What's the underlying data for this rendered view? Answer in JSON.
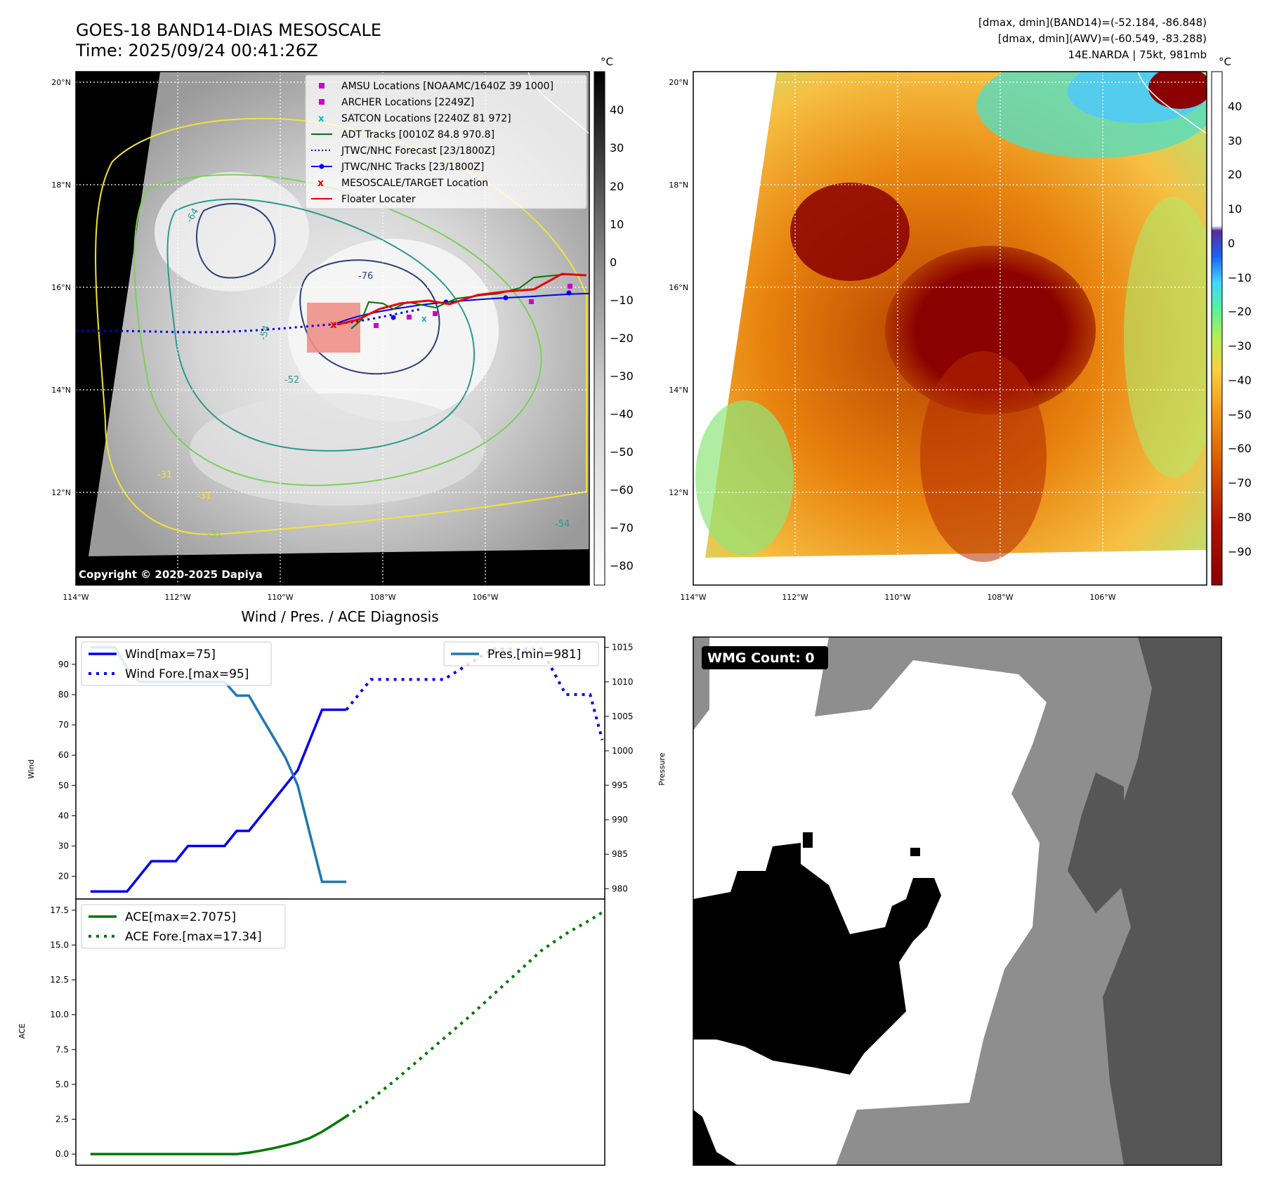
{
  "header": {
    "title": "GOES-18 BAND14-DIAS MESOSCALE",
    "time": "Time: 2025/09/24 00:41:26Z",
    "stats_line1": "[dmax, dmin](BAND14)=(-52.184, -86.848)",
    "stats_line2": "[dmax, dmin](AWV)=(-60.549, -83.288)",
    "storm_line": "14E.NARDA | 75kt, 981mb"
  },
  "map": {
    "lat_labels": [
      "20°N",
      "18°N",
      "16°N",
      "14°N",
      "12°N"
    ],
    "lon_labels": [
      "114°W",
      "112°W",
      "110°W",
      "108°W",
      "106°W"
    ],
    "copyright": "Copyright © 2020-2025 Dapiya",
    "contour_labels": [
      "-64",
      "-76",
      "-54",
      "-52",
      "-31",
      "-31",
      "-31",
      "-54"
    ],
    "colors": {
      "eye_patch": "#f0908a",
      "track_blue": "#0000ee",
      "track_red": "#ee0000",
      "adt_green": "#007700",
      "archer_magenta": "#cc00cc",
      "satcon_cyan": "#00bbbb",
      "contour_yellow": "#f2e23a",
      "contour_green": "#7ccf5a",
      "contour_teal": "#2a9a8e",
      "contour_navy": "#2b3f7a"
    }
  },
  "legend": {
    "items": [
      {
        "label": "AMSU Locations [NOAAMC/1640Z 39 1000]",
        "marker": "square",
        "color": "#cc00cc"
      },
      {
        "label": "ARCHER Locations [2249Z]",
        "marker": "square",
        "color": "#cc00cc"
      },
      {
        "label": "SATCON Locations [2240Z 81 972]",
        "marker": "x",
        "color": "#00bbbb"
      },
      {
        "label": "ADT Tracks [0010Z 84.8 970.8]",
        "marker": "line",
        "color": "#007700"
      },
      {
        "label": "JTWC/NHC Forecast [23/1800Z]",
        "marker": "dotted",
        "color": "#0000ee"
      },
      {
        "label": "JTWC/NHC Tracks [23/1800Z]",
        "marker": "line-dot",
        "color": "#0000ee"
      },
      {
        "label": "MESOSCALE/TARGET Location",
        "marker": "x",
        "color": "#ee0000"
      },
      {
        "label": "Floater Locater",
        "marker": "line",
        "color": "#ee0000"
      }
    ]
  },
  "colorbar_gray": {
    "unit": "°C",
    "ticks": [
      "40",
      "30",
      "20",
      "10",
      "0",
      "−10",
      "−20",
      "−30",
      "−40",
      "−50",
      "−60",
      "−70",
      "−80"
    ]
  },
  "colorbar_awv": {
    "unit": "°C",
    "ticks": [
      "40",
      "30",
      "20",
      "10",
      "0",
      "−10",
      "−20",
      "−30",
      "−40",
      "−50",
      "−60",
      "−70",
      "−80",
      "−90"
    ]
  },
  "chart_data": [
    {
      "type": "line",
      "title": "Wind / Pres. / ACE Diagnosis",
      "ylabel": "Wind",
      "y2label": "Pressure",
      "ylim": [
        12.5,
        99
      ],
      "y2lim": [
        978.5,
        1016.5
      ],
      "yticks": [
        20,
        30,
        40,
        50,
        60,
        70,
        80,
        90
      ],
      "y2ticks": [
        980,
        985,
        990,
        995,
        1000,
        1005,
        1010,
        1015
      ],
      "x": [
        0,
        1,
        2,
        3,
        4,
        5,
        6,
        7,
        8,
        9,
        10,
        11,
        12,
        13,
        14,
        15,
        16,
        17,
        18,
        19,
        20,
        21,
        22,
        23,
        24,
        25,
        26,
        27,
        28,
        29,
        30,
        31,
        32,
        33,
        34,
        35,
        36,
        37,
        38,
        39,
        40,
        41,
        42
      ],
      "xlim": [
        -1.2,
        42.2
      ],
      "series": [
        {
          "name": "Wind[max=75]",
          "axis": "left",
          "style": "solid",
          "color": "#0000ee",
          "x": [
            0,
            1,
            2,
            3,
            4,
            5,
            6,
            7,
            8,
            9,
            10,
            11,
            12,
            13,
            14,
            15,
            16,
            17,
            18,
            19,
            20,
            21
          ],
          "values": [
            15,
            15,
            15,
            15,
            20,
            25,
            25,
            25,
            30,
            30,
            30,
            30,
            35,
            35,
            40,
            45,
            50,
            55,
            65,
            75,
            75,
            75
          ]
        },
        {
          "name": "Wind Fore.[max=95]",
          "axis": "left",
          "style": "dotted",
          "color": "#0000ee",
          "x": [
            21,
            23,
            25,
            27,
            29,
            31,
            33,
            35,
            37,
            39,
            40,
            41,
            42
          ],
          "values": [
            75,
            85,
            85,
            85,
            85,
            90,
            95,
            95,
            95,
            80,
            80,
            80,
            65
          ]
        },
        {
          "name": "Pres.[min=981]",
          "axis": "right",
          "style": "solid",
          "color": "#1f77b4",
          "x": [
            0,
            1,
            2,
            3,
            4,
            5,
            6,
            7,
            8,
            9,
            10,
            11,
            12,
            13,
            14,
            15,
            16,
            17,
            18,
            19,
            20,
            21
          ],
          "values": [
            1015,
            1015,
            1015,
            1012,
            1010,
            1010,
            1010,
            1010,
            1010,
            1010,
            1010,
            1010,
            1008,
            1008,
            1005,
            1002,
            999,
            995,
            988,
            981,
            981,
            981
          ]
        }
      ]
    },
    {
      "type": "line",
      "ylabel": "ACE",
      "ylim": [
        -0.8,
        18.3
      ],
      "yticks": [
        "0.0",
        "2.5",
        "5.0",
        "7.5",
        "10.0",
        "12.5",
        "15.0",
        "17.5"
      ],
      "xlim": [
        -1.2,
        42.2
      ],
      "series": [
        {
          "name": "ACE[max=2.7075]",
          "style": "solid",
          "color": "#007700",
          "x": [
            0,
            2,
            4,
            6,
            8,
            10,
            12,
            13,
            14,
            15,
            16,
            17,
            18,
            19,
            20,
            21
          ],
          "values": [
            0,
            0,
            0,
            0,
            0,
            0,
            0,
            0.1,
            0.25,
            0.42,
            0.62,
            0.85,
            1.15,
            1.6,
            2.15,
            2.7075
          ]
        },
        {
          "name": "ACE Fore.[max=17.34]",
          "style": "dotted",
          "color": "#007700",
          "x": [
            21,
            23,
            25,
            27,
            29,
            31,
            33,
            35,
            37,
            39,
            41,
            42
          ],
          "values": [
            2.7075,
            3.9,
            5.3,
            6.8,
            8.3,
            9.8,
            11.4,
            13,
            14.6,
            15.8,
            16.8,
            17.34
          ]
        }
      ]
    }
  ],
  "wmg": {
    "label": "WMG Count: 0"
  }
}
